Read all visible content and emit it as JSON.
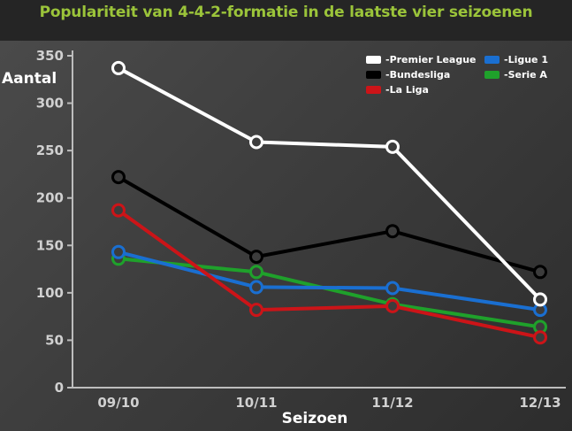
{
  "chart_data": {
    "type": "line",
    "title": "Populariteit van 4-4-2-formatie in de laatste vier seizoenen",
    "xlabel": "Seizoen",
    "ylabel": "Aantal",
    "categories": [
      "09/10",
      "10/11",
      "11/12",
      "12/13"
    ],
    "ylim": [
      0,
      350
    ],
    "yticks": [
      0,
      50,
      100,
      150,
      200,
      250,
      300,
      350
    ],
    "grid": false,
    "legend_position": "top-right",
    "series": [
      {
        "name": "-Premier League",
        "color": "#ffffff",
        "values": [
          337,
          259,
          254,
          93
        ]
      },
      {
        "name": "-Bundesliga",
        "color": "#000000",
        "values": [
          222,
          138,
          165,
          122
        ]
      },
      {
        "name": "-La Liga",
        "color": "#cc1418",
        "values": [
          187,
          82,
          86,
          53
        ]
      },
      {
        "name": "-Ligue 1",
        "color": "#1a6fd1",
        "values": [
          143,
          106,
          105,
          82
        ]
      },
      {
        "name": "-Serie A",
        "color": "#1fa12b",
        "values": [
          136,
          122,
          88,
          64
        ]
      }
    ]
  }
}
